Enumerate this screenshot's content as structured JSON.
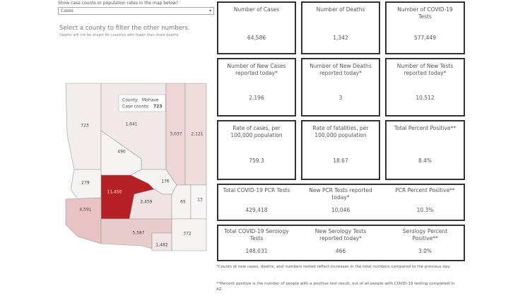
{
  "controls": {
    "prompt": "Show case counts or population rates in the map below?",
    "dropdown": "Cases",
    "instruction": "Select a county to filter the other numbers.",
    "note": "Deaths will not be shown for counties with fewer than three deaths"
  },
  "map": {
    "tooltip": {
      "county_label": "County:",
      "county": "Mohave",
      "count_label": "Case counts:",
      "count": "723"
    },
    "counties": [
      {
        "name": "Mohave",
        "label": "723"
      },
      {
        "name": "Coconino",
        "label": "1,641"
      },
      {
        "name": "Navajo",
        "label": "3,037"
      },
      {
        "name": "Apache",
        "label": "2,121"
      },
      {
        "name": "Yavapai",
        "label": "490"
      },
      {
        "name": "La Paz",
        "label": "279"
      },
      {
        "name": "Gila",
        "label": "176"
      },
      {
        "name": "Maricopa",
        "label": "11,450"
      },
      {
        "name": "Pinal",
        "label": "2,459"
      },
      {
        "name": "Graham",
        "label": "65"
      },
      {
        "name": "Greenlee",
        "label": "13"
      },
      {
        "name": "Yuma",
        "label": "4,591"
      },
      {
        "name": "Pima",
        "label": "5,587"
      },
      {
        "name": "Cochise",
        "label": "372"
      },
      {
        "name": "Santa Cruz",
        "label": "1,482"
      }
    ]
  },
  "tiles": [
    [
      {
        "title": "Number of Cases",
        "value": "64,586"
      },
      {
        "title": "Number of Deaths",
        "value": "1,342"
      },
      {
        "title": "Number of COVID-19 Tests",
        "value": "577,449"
      }
    ],
    [
      {
        "title": "Number of New Cases reported today*",
        "value": "2,196"
      },
      {
        "title": "Number of New Deaths reported today*",
        "value": "3"
      },
      {
        "title": "Number of New Tests reported today*",
        "value": "10,512"
      }
    ],
    [
      {
        "title": "Rate of cases, per 100,000 population",
        "value": "759.3"
      },
      {
        "title": "Rate of fatalities, per 100,000 population",
        "value": "18.67"
      },
      {
        "title": "Total Percent Positive**",
        "value": "8.4%"
      }
    ],
    [
      {
        "title": "Total COVID-19 PCR Tests",
        "value": "429,418"
      },
      {
        "title": "New PCR Tests reported today*",
        "value": "10,046"
      },
      {
        "title": "PCR Percent Positive**",
        "value": "10.3%"
      }
    ],
    [
      {
        "title": "Total COVID-19 Serology Tests",
        "value": "148,031"
      },
      {
        "title": "New Serology Tests reported today*",
        "value": "466"
      },
      {
        "title": "Serology Percent Positive**",
        "value": "3.0%"
      }
    ]
  ],
  "footnotes": [
    "*Counts of new cases, deaths, and numbers tested reflect increases in the total numbers compared to the previous day.",
    "**Percent positive is the number of people with a positive test result, out of all people with COVID-19 testing completed in AZ."
  ]
}
